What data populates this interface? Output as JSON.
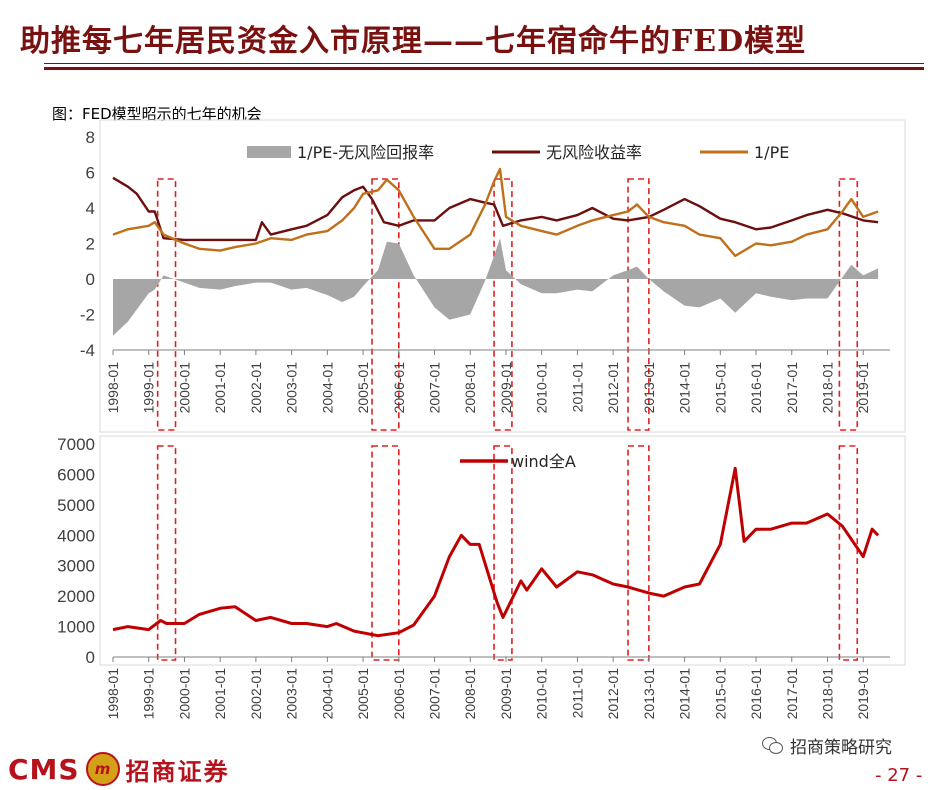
{
  "slide": {
    "title": "助推每七年居民资金入市原理——七年宿命牛的FED模型",
    "figure_caption": "图：FED模型昭示的七年的机会",
    "page_number": "- 27 -",
    "watermark": "招商策略研究",
    "logo_latin": "CMS",
    "logo_badge": "m",
    "logo_chinese": "招商证券"
  },
  "colors": {
    "title": "#7a1111",
    "spread_area": "#a6a6a6",
    "risk_free": "#6b0f0f",
    "earnings_yield": "#c0701a",
    "wind_a": "#c00000",
    "dashed_box": "#e02020"
  },
  "chart_data": [
    {
      "type": "line",
      "ylim": [
        -4,
        8
      ],
      "yticks": [
        "8",
        "6",
        "4",
        "2",
        "0",
        "-2",
        "-4"
      ],
      "xticks": [
        "1998-01",
        "1999-01",
        "2000-01",
        "2001-01",
        "2002-01",
        "2003-01",
        "2004-01",
        "2005-01",
        "2006-01",
        "2007-01",
        "2008-01",
        "2009-01",
        "2010-01",
        "2011-01",
        "2012-01",
        "2013-01",
        "2014-01",
        "2015-01",
        "2016-01",
        "2017-01",
        "2018-01",
        "2019-01"
      ],
      "legend": [
        "1/PE-无风险回报率",
        "无风险收益率",
        "1/PE"
      ],
      "legend_position": "top",
      "grid": false,
      "series": [
        {
          "name": "无风险收益率",
          "x": [
            "1998-01",
            "1998-06",
            "1998-09",
            "1999-01",
            "1999-03",
            "1999-06",
            "2000-01",
            "2001-01",
            "2001-06",
            "2002-01",
            "2002-03",
            "2002-06",
            "2003-01",
            "2003-06",
            "2004-01",
            "2004-06",
            "2004-10",
            "2005-01",
            "2005-04",
            "2005-08",
            "2006-01",
            "2006-06",
            "2007-01",
            "2007-06",
            "2008-01",
            "2008-06",
            "2008-09",
            "2008-12",
            "2009-06",
            "2010-01",
            "2010-06",
            "2011-01",
            "2011-06",
            "2012-01",
            "2012-06",
            "2013-01",
            "2013-06",
            "2014-01",
            "2014-06",
            "2015-01",
            "2015-06",
            "2016-01",
            "2016-06",
            "2017-01",
            "2017-06",
            "2018-01",
            "2018-06",
            "2019-01",
            "2019-06"
          ],
          "values": [
            5.7,
            5.2,
            4.8,
            3.8,
            3.8,
            2.3,
            2.2,
            2.2,
            2.2,
            2.2,
            3.2,
            2.5,
            2.8,
            3.0,
            3.6,
            4.6,
            5.0,
            5.2,
            4.5,
            3.2,
            3.0,
            3.3,
            3.3,
            4.0,
            4.5,
            4.3,
            4.2,
            3.0,
            3.3,
            3.5,
            3.3,
            3.6,
            4.0,
            3.4,
            3.3,
            3.5,
            3.9,
            4.5,
            4.1,
            3.4,
            3.2,
            2.8,
            2.9,
            3.3,
            3.6,
            3.9,
            3.7,
            3.3,
            3.2
          ]
        },
        {
          "name": "1/PE",
          "x": [
            "1998-01",
            "1998-06",
            "1999-01",
            "1999-03",
            "1999-06",
            "2000-01",
            "2000-06",
            "2001-01",
            "2001-06",
            "2002-01",
            "2002-06",
            "2003-01",
            "2003-06",
            "2004-01",
            "2004-06",
            "2004-10",
            "2005-01",
            "2005-06",
            "2005-09",
            "2006-01",
            "2006-06",
            "2007-01",
            "2007-06",
            "2008-01",
            "2008-06",
            "2008-09",
            "2008-11",
            "2009-01",
            "2009-06",
            "2010-01",
            "2010-06",
            "2011-01",
            "2011-06",
            "2012-01",
            "2012-06",
            "2012-09",
            "2013-01",
            "2013-06",
            "2014-01",
            "2014-06",
            "2015-01",
            "2015-06",
            "2016-01",
            "2016-06",
            "2017-01",
            "2017-06",
            "2018-01",
            "2018-06",
            "2018-09",
            "2019-01",
            "2019-06"
          ],
          "values": [
            2.5,
            2.8,
            3.0,
            3.2,
            2.5,
            2.0,
            1.7,
            1.6,
            1.8,
            2.0,
            2.3,
            2.2,
            2.5,
            2.7,
            3.3,
            4.0,
            4.8,
            5.0,
            5.6,
            5.0,
            3.5,
            1.7,
            1.7,
            2.5,
            4.2,
            5.5,
            6.2,
            3.5,
            3.0,
            2.7,
            2.5,
            3.0,
            3.3,
            3.6,
            3.8,
            4.2,
            3.5,
            3.2,
            3.0,
            2.5,
            2.3,
            1.3,
            2.0,
            1.9,
            2.1,
            2.5,
            2.8,
            3.8,
            4.5,
            3.5,
            3.8
          ]
        },
        {
          "name": "1/PE-无风险回报率",
          "x": [
            "1998-01",
            "1998-06",
            "1999-01",
            "1999-03",
            "1999-06",
            "2000-01",
            "2000-06",
            "2001-01",
            "2001-06",
            "2002-01",
            "2002-06",
            "2003-01",
            "2003-06",
            "2004-01",
            "2004-06",
            "2004-10",
            "2005-01",
            "2005-06",
            "2005-09",
            "2006-01",
            "2006-06",
            "2007-01",
            "2007-06",
            "2008-01",
            "2008-06",
            "2008-09",
            "2008-11",
            "2009-01",
            "2009-06",
            "2010-01",
            "2010-06",
            "2011-01",
            "2011-06",
            "2012-01",
            "2012-06",
            "2012-09",
            "2013-01",
            "2013-06",
            "2014-01",
            "2014-06",
            "2015-01",
            "2015-06",
            "2016-01",
            "2016-06",
            "2017-01",
            "2017-06",
            "2018-01",
            "2018-06",
            "2018-09",
            "2019-01",
            "2019-06"
          ],
          "values": [
            -3.2,
            -2.4,
            -0.8,
            -0.6,
            0.2,
            -0.2,
            -0.5,
            -0.6,
            -0.4,
            -0.2,
            -0.2,
            -0.6,
            -0.5,
            -0.9,
            -1.3,
            -1.0,
            -0.4,
            0.5,
            2.1,
            2.0,
            0.2,
            -1.6,
            -2.3,
            -2.0,
            -0.1,
            1.3,
            2.3,
            0.5,
            -0.3,
            -0.8,
            -0.8,
            -0.6,
            -0.7,
            0.2,
            0.5,
            0.7,
            0.0,
            -0.7,
            -1.5,
            -1.6,
            -1.1,
            -1.9,
            -0.8,
            -1.0,
            -1.2,
            -1.1,
            -1.1,
            0.1,
            0.8,
            0.2,
            0.6
          ]
        }
      ],
      "highlight_periods": [
        [
          "1999-04",
          "1999-10"
        ],
        [
          "2005-04",
          "2006-01"
        ],
        [
          "2008-09",
          "2009-03"
        ],
        [
          "2012-06",
          "2013-01"
        ],
        [
          "2018-05",
          "2018-11"
        ]
      ]
    },
    {
      "type": "line",
      "ylim": [
        0,
        7000
      ],
      "yticks": [
        "7000",
        "6000",
        "5000",
        "4000",
        "3000",
        "2000",
        "1000",
        "0"
      ],
      "xticks": [
        "1998-01",
        "1999-01",
        "2000-01",
        "2001-01",
        "2002-01",
        "2003-01",
        "2004-01",
        "2005-01",
        "2006-01",
        "2007-01",
        "2008-01",
        "2009-01",
        "2010-01",
        "2011-01",
        "2012-01",
        "2013-01",
        "2014-01",
        "2015-01",
        "2016-01",
        "2017-01",
        "2018-01",
        "2019-01"
      ],
      "legend": [
        "wind全A"
      ],
      "legend_position": "top",
      "grid": false,
      "series": [
        {
          "name": "wind全A",
          "x": [
            "1998-01",
            "1998-06",
            "1999-01",
            "1999-05",
            "1999-07",
            "2000-01",
            "2000-06",
            "2001-01",
            "2001-06",
            "2002-01",
            "2002-06",
            "2003-01",
            "2003-06",
            "2004-01",
            "2004-04",
            "2004-10",
            "2005-06",
            "2006-01",
            "2006-06",
            "2007-01",
            "2007-06",
            "2007-10",
            "2008-01",
            "2008-04",
            "2008-10",
            "2008-12",
            "2009-06",
            "2009-08",
            "2010-01",
            "2010-06",
            "2011-01",
            "2011-06",
            "2012-01",
            "2012-06",
            "2013-01",
            "2013-06",
            "2014-01",
            "2014-06",
            "2015-01",
            "2015-06",
            "2015-09",
            "2016-01",
            "2016-06",
            "2017-01",
            "2017-06",
            "2018-01",
            "2018-06",
            "2019-01",
            "2019-04",
            "2019-06"
          ],
          "values": [
            900,
            1000,
            900,
            1200,
            1100,
            1100,
            1400,
            1600,
            1650,
            1200,
            1300,
            1100,
            1100,
            1000,
            1100,
            850,
            700,
            800,
            1050,
            2000,
            3300,
            4000,
            3700,
            3700,
            1800,
            1300,
            2500,
            2200,
            2900,
            2300,
            2800,
            2700,
            2400,
            2300,
            2100,
            2000,
            2300,
            2400,
            3700,
            6200,
            3800,
            4200,
            4200,
            4400,
            4400,
            4700,
            4300,
            3300,
            4200,
            4000
          ]
        }
      ],
      "highlight_periods": [
        [
          "1999-04",
          "1999-10"
        ],
        [
          "2005-04",
          "2006-01"
        ],
        [
          "2008-09",
          "2009-03"
        ],
        [
          "2012-06",
          "2013-01"
        ],
        [
          "2018-05",
          "2018-11"
        ]
      ]
    }
  ]
}
